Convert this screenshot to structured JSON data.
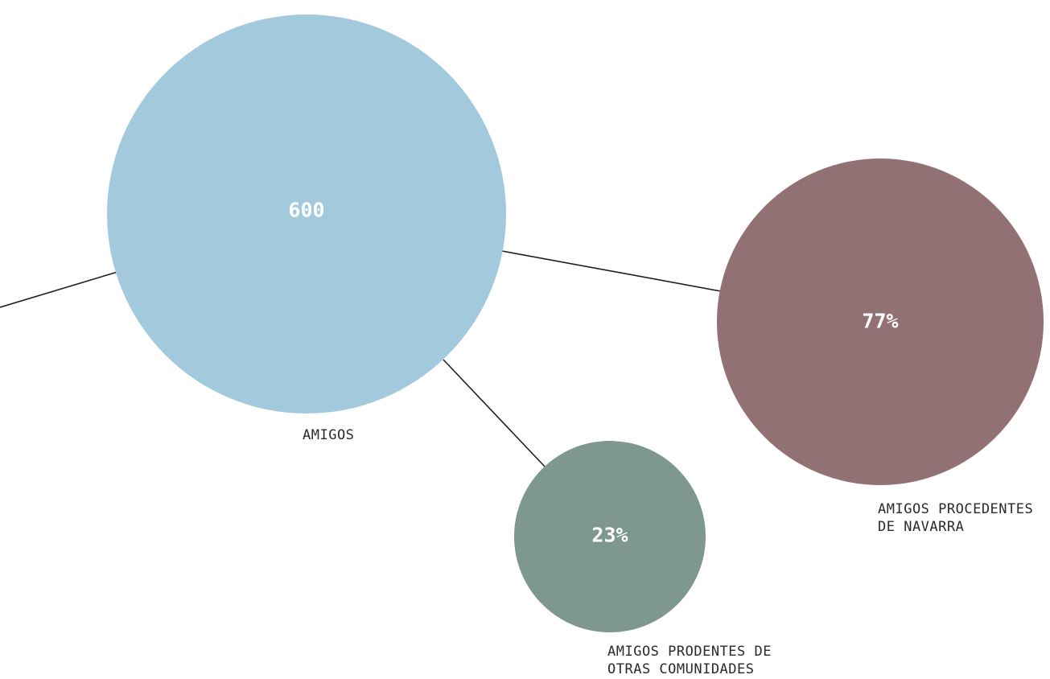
{
  "nodes": {
    "amigos": {
      "value": "600",
      "label_lines": [
        "AMIGOS"
      ],
      "color": "#a2c9dc"
    },
    "navarra": {
      "value": "77%",
      "label_lines": [
        "AMIGOS PROCEDENTES",
        "DE NAVARRA"
      ],
      "color": "#927175"
    },
    "otras": {
      "value": "23%",
      "label_lines": [
        "AMIGOS PRODENTES DE",
        "OTRAS COMUNIDADES"
      ],
      "color": "#7e988f"
    }
  },
  "colors": {
    "line": "#1f1f1f",
    "label_text": "#2b2b2b",
    "value_text": "#ffffff"
  }
}
